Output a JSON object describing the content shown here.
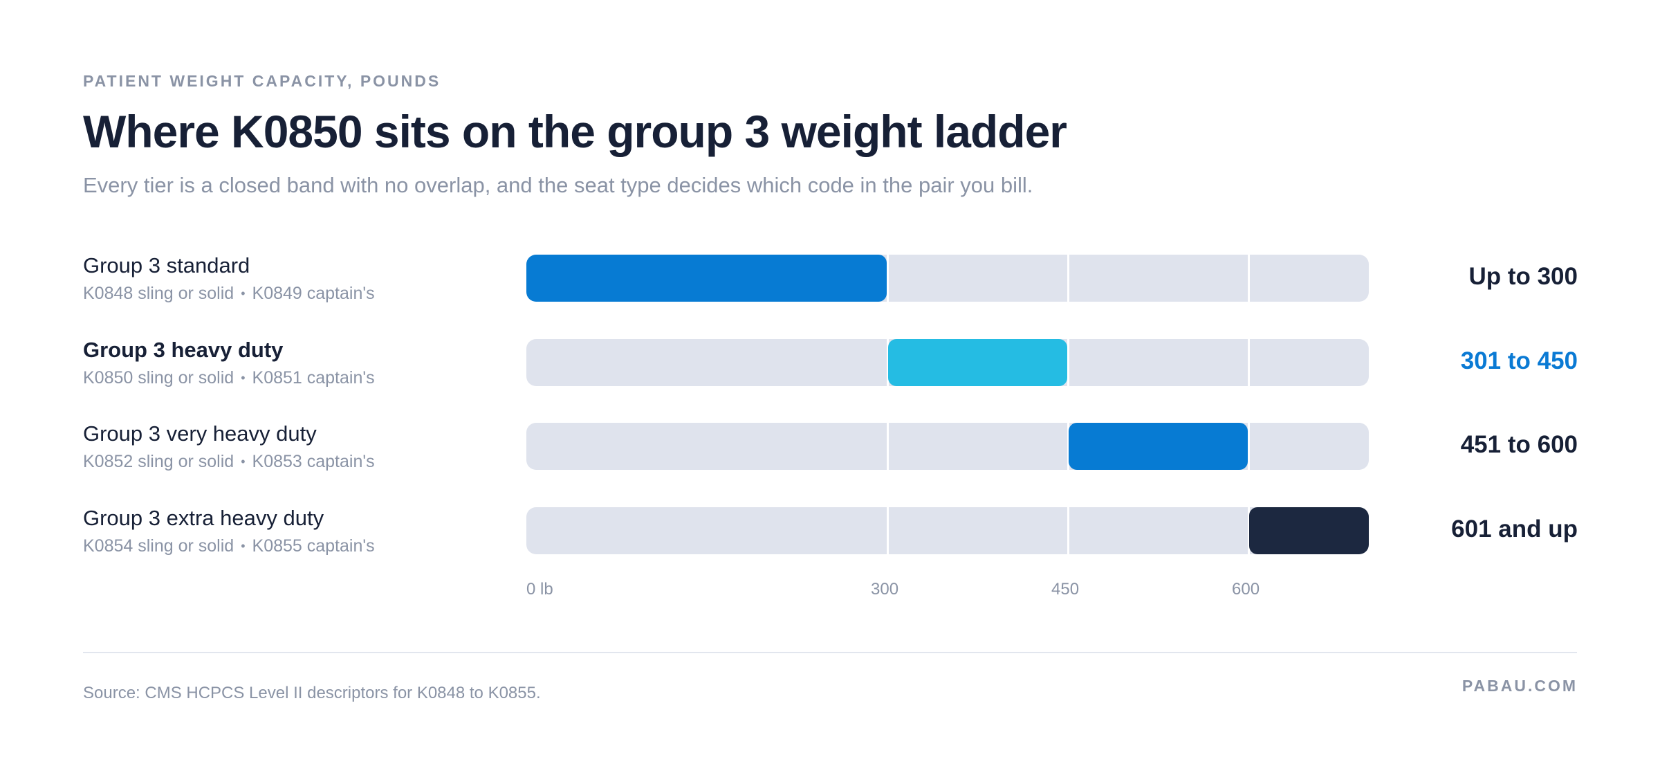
{
  "eyebrow": "PATIENT WEIGHT CAPACITY, POUNDS",
  "title": "Where K0850 sits on the group 3 weight ladder",
  "subtitle": "Every tier is a closed band with no overlap, and the seat type decides which code in the pair you bill.",
  "chart_data": {
    "type": "bar",
    "orientation": "horizontal-range",
    "x_unit": "lb",
    "xlim": [
      0,
      700
    ],
    "x_ticks": [
      {
        "value": 0,
        "label": "0 lb"
      },
      {
        "value": 300,
        "label": "300"
      },
      {
        "value": 450,
        "label": "450"
      },
      {
        "value": 600,
        "label": "600"
      }
    ],
    "gridlines": [
      300,
      450,
      600
    ],
    "rows": [
      {
        "name": "Group 3 standard",
        "code_a": "K0848 sling or solid",
        "code_b": "K0849 captain's",
        "start": 0,
        "end": 300,
        "range_label": "Up to 300",
        "color": "#077bd3",
        "highlight": false,
        "open_ended": false
      },
      {
        "name": "Group 3 heavy duty",
        "code_a": "K0850 sling or solid",
        "code_b": "K0851 captain's",
        "start": 300,
        "end": 450,
        "range_label": "301 to 450",
        "color": "#25bce3",
        "highlight": true,
        "open_ended": false
      },
      {
        "name": "Group 3 very heavy duty",
        "code_a": "K0852 sling or solid",
        "code_b": "K0853 captain's",
        "start": 450,
        "end": 600,
        "range_label": "451 to 600",
        "color": "#077bd3",
        "highlight": false,
        "open_ended": false
      },
      {
        "name": "Group 3 extra heavy duty",
        "code_a": "K0854 sling or solid",
        "code_b": "K0855 captain's",
        "start": 600,
        "end": 700,
        "range_label": "601 and up",
        "color": "#1c2840",
        "highlight": false,
        "open_ended": true
      }
    ]
  },
  "footer": {
    "source": "Source: CMS HCPCS Level II descriptors for K0848 to K0855.",
    "brand": "PABAU.COM"
  },
  "colors": {
    "track": "#dfe3ed",
    "text_primary": "#172036",
    "text_muted": "#8a93a5",
    "highlight": "#0a7ad4"
  }
}
